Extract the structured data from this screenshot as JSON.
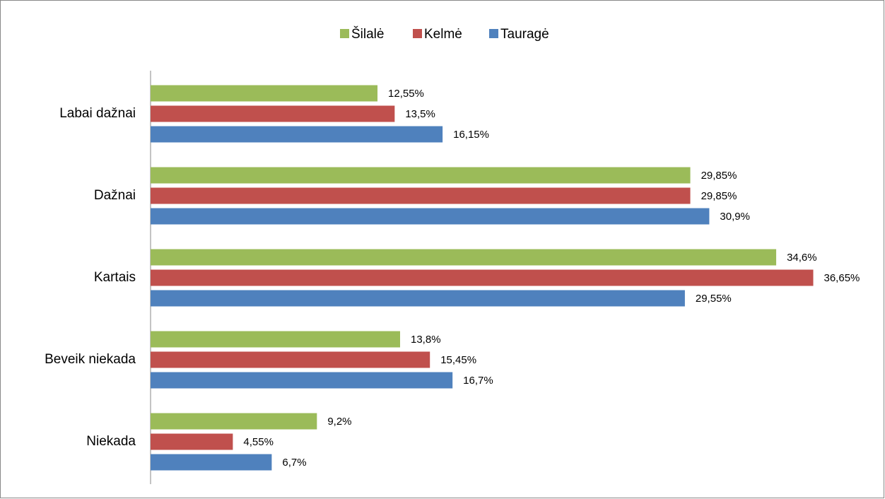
{
  "chart_data": {
    "type": "bar",
    "orientation": "horizontal",
    "categories": [
      "Labai dažnai",
      "Dažnai",
      "Kartais",
      "Beveik niekada",
      "Niekada"
    ],
    "series": [
      {
        "name": "Šilalė",
        "color": "#9bbb59",
        "values": [
          12.55,
          29.85,
          34.6,
          13.8,
          9.2
        ],
        "value_labels": [
          "12,55%",
          "29,85%",
          "34,6%",
          "13,8%",
          "9,2%"
        ]
      },
      {
        "name": "Kelmė",
        "color": "#c0504d",
        "values": [
          13.5,
          29.85,
          36.65,
          15.45,
          4.55
        ],
        "value_labels": [
          "13,5%",
          "29,85%",
          "36,65%",
          "15,45%",
          "4,55%"
        ]
      },
      {
        "name": "Tauragė",
        "color": "#4f81bd",
        "values": [
          16.15,
          30.9,
          29.55,
          16.7,
          6.7
        ],
        "value_labels": [
          "16,15%",
          "30,9%",
          "29,55%",
          "16,7%",
          "6,7%"
        ]
      }
    ],
    "legend": "top"
  }
}
